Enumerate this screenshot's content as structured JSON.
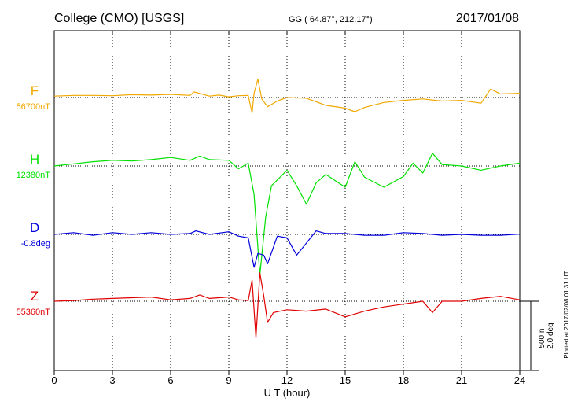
{
  "header": {
    "station": "College (CMO)  [USGS]",
    "coords": "GG ( 64.87°, 212.17°)",
    "date": "2017/01/08"
  },
  "side_note": "Plotted at 2017/02/08 01:31  UT",
  "scale_bar": {
    "line1": "500 nT",
    "line2": "2.0 deg"
  },
  "colors": {
    "F": "#f0a800",
    "H": "#00e000",
    "D": "#0000dd",
    "Z": "#e00000",
    "axis": "#000000"
  },
  "chart_data": {
    "type": "line",
    "xlabel": "U T (hour)",
    "xlim": [
      0,
      24
    ],
    "x_ticks": [
      "0",
      "3",
      "6",
      "9",
      "12",
      "15",
      "18",
      "21",
      "24"
    ],
    "series": [
      {
        "name": "F",
        "baseline_label": "56700nT",
        "color": "#f0a800",
        "x": [
          0,
          1,
          2,
          3,
          4,
          5,
          6,
          7,
          7.2,
          8,
          8.5,
          9,
          9.5,
          10,
          10.2,
          10.3,
          10.5,
          10.7,
          11,
          11.5,
          12,
          13,
          14,
          15,
          15.5,
          16,
          17,
          18,
          19,
          20,
          21,
          22,
          22.5,
          23,
          24
        ],
        "y": [
          10,
          15,
          15,
          13,
          20,
          17,
          22,
          15,
          40,
          10,
          17,
          5,
          13,
          15,
          -110,
          30,
          130,
          -10,
          -65,
          -25,
          0,
          -5,
          -55,
          -75,
          -100,
          -70,
          -35,
          -20,
          -10,
          -25,
          -20,
          -40,
          60,
          25,
          30
        ]
      },
      {
        "name": "H",
        "baseline_label": "12380nT",
        "color": "#00e000",
        "x": [
          0,
          1,
          2,
          3,
          4,
          5,
          6,
          7,
          7.5,
          8,
          9,
          9.5,
          10,
          10.3,
          10.6,
          10.9,
          11.2,
          12,
          12.5,
          13,
          13.5,
          14,
          15,
          15.5,
          16,
          17,
          18,
          18.5,
          19,
          19.5,
          20,
          21,
          22,
          23,
          24
        ],
        "y": [
          0,
          15,
          30,
          40,
          35,
          45,
          60,
          40,
          70,
          45,
          40,
          -20,
          20,
          -200,
          -770,
          -360,
          -140,
          -30,
          -140,
          -270,
          -120,
          -60,
          -150,
          30,
          -80,
          -150,
          -75,
          20,
          -50,
          90,
          10,
          0,
          -30,
          0,
          20
        ]
      },
      {
        "name": "D",
        "baseline_label": "-0.8deg",
        "color": "#0000dd",
        "x": [
          0,
          1,
          2,
          3,
          4,
          5,
          6,
          7,
          7.3,
          8,
          9,
          9.5,
          10,
          10.3,
          10.5,
          10.8,
          11,
          11.5,
          12,
          12.5,
          13,
          13.5,
          14,
          15,
          16,
          17,
          18,
          19,
          20,
          21,
          22,
          23,
          24
        ],
        "y": [
          0,
          0.1,
          -0.05,
          0.1,
          0,
          0.1,
          0,
          0.05,
          0.2,
          0,
          0.15,
          -0.1,
          -0.2,
          -1.9,
          -1.1,
          -1.2,
          -1.7,
          -0.1,
          -0.2,
          -1.2,
          -0.5,
          0.2,
          0.05,
          0.05,
          -0.05,
          -0.05,
          0.1,
          0.05,
          -0.05,
          0,
          -0.05,
          -0.05,
          0.02
        ]
      },
      {
        "name": "Z",
        "baseline_label": "55360nT",
        "color": "#e00000",
        "x": [
          0,
          1,
          2,
          3,
          4,
          5,
          6,
          7,
          7.5,
          8,
          9,
          9.5,
          10,
          10.2,
          10.4,
          10.6,
          10.8,
          11,
          11.3,
          12,
          13,
          14,
          15,
          16,
          17,
          18,
          19,
          19.5,
          20,
          21,
          22,
          23,
          24
        ],
        "y": [
          0,
          5,
          15,
          20,
          25,
          30,
          10,
          20,
          45,
          20,
          30,
          10,
          5,
          150,
          -260,
          200,
          40,
          -150,
          -80,
          -60,
          -70,
          -55,
          -110,
          -70,
          -40,
          -20,
          0,
          -80,
          0,
          0,
          20,
          35,
          10
        ]
      }
    ]
  }
}
